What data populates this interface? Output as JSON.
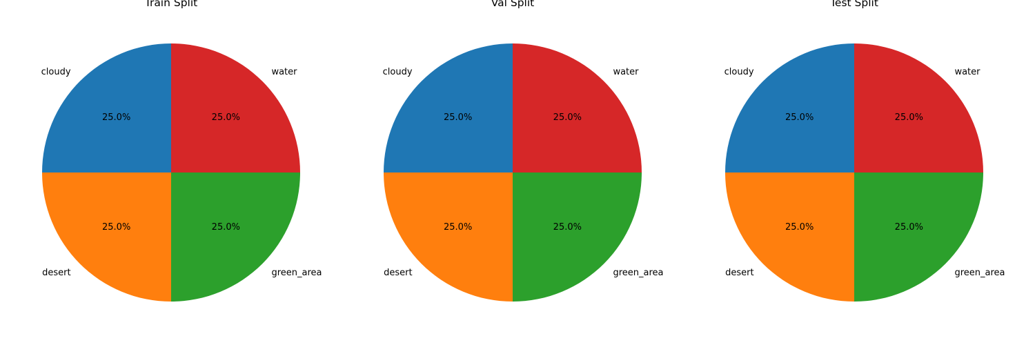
{
  "chart_data": [
    {
      "type": "pie",
      "title": "Train Split",
      "labels": [
        "cloudy",
        "desert",
        "green_area",
        "water"
      ],
      "values": [
        25,
        25,
        25,
        25
      ],
      "percent_labels": [
        "25.0%",
        "25.0%",
        "25.0%",
        "25.0%"
      ],
      "colors": [
        "#1f77b4",
        "#ff7f0e",
        "#2ca02c",
        "#d62728"
      ],
      "start_angle_deg": 90,
      "direction": "counterclockwise"
    },
    {
      "type": "pie",
      "title": "Val Split",
      "labels": [
        "cloudy",
        "desert",
        "green_area",
        "water"
      ],
      "values": [
        25,
        25,
        25,
        25
      ],
      "percent_labels": [
        "25.0%",
        "25.0%",
        "25.0%",
        "25.0%"
      ],
      "colors": [
        "#1f77b4",
        "#ff7f0e",
        "#2ca02c",
        "#d62728"
      ],
      "start_angle_deg": 90,
      "direction": "counterclockwise"
    },
    {
      "type": "pie",
      "title": "Test Split",
      "labels": [
        "cloudy",
        "desert",
        "green_area",
        "water"
      ],
      "values": [
        25,
        25,
        25,
        25
      ],
      "percent_labels": [
        "25.0%",
        "25.0%",
        "25.0%",
        "25.0%"
      ],
      "colors": [
        "#1f77b4",
        "#ff7f0e",
        "#2ca02c",
        "#d62728"
      ],
      "start_angle_deg": 90,
      "direction": "counterclockwise"
    }
  ]
}
